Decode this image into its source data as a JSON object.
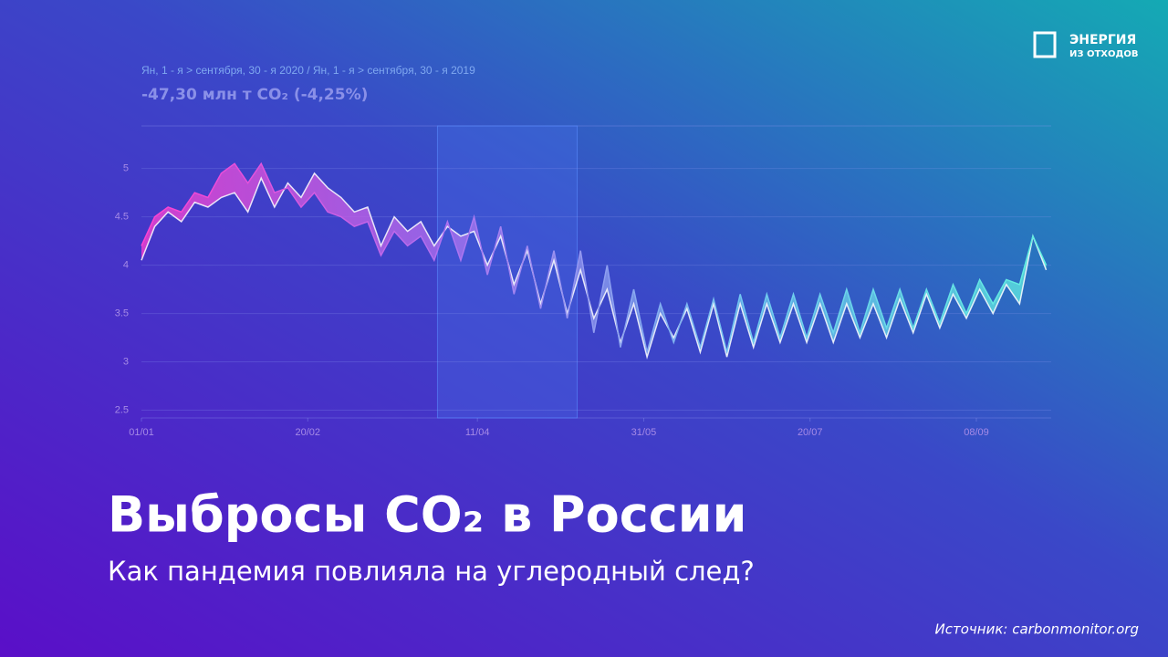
{
  "title": "Выбросы CO₂ в России",
  "subtitle": "Как пандемия повлияла на углеродный след?",
  "source": "Источник: carbonmonitor.org",
  "logo": {
    "line1": "ЭНЕРГИЯ",
    "line2": "ИЗ ОТХОДОВ"
  },
  "chart_data": {
    "type": "line",
    "header": "Ян, 1 - я > сентября, 30 - я 2020 / Ян, 1 - я > сентября, 30 - я 2019",
    "summary": "-47,30 млн т CO₂ (-4,25%)",
    "x": [
      0,
      4,
      8,
      12,
      16,
      20,
      24,
      28,
      32,
      36,
      40,
      44,
      48,
      52,
      56,
      60,
      64,
      68,
      72,
      76,
      80,
      84,
      88,
      92,
      96,
      100,
      104,
      108,
      112,
      116,
      120,
      124,
      128,
      132,
      136,
      140,
      144,
      148,
      152,
      156,
      160,
      164,
      168,
      172,
      176,
      180,
      184,
      188,
      192,
      196,
      200,
      204,
      208,
      212,
      216,
      220,
      224,
      228,
      232,
      236,
      240,
      244,
      248,
      252,
      256,
      260,
      264,
      268,
      272
    ],
    "series": [
      {
        "name": "2020",
        "color": "#ffffff",
        "values": [
          4.05,
          4.4,
          4.55,
          4.45,
          4.65,
          4.6,
          4.7,
          4.75,
          4.55,
          4.9,
          4.6,
          4.85,
          4.7,
          4.95,
          4.8,
          4.7,
          4.55,
          4.6,
          4.2,
          4.5,
          4.35,
          4.45,
          4.2,
          4.4,
          4.3,
          4.35,
          4.0,
          4.3,
          3.8,
          4.15,
          3.6,
          4.05,
          3.5,
          3.95,
          3.45,
          3.75,
          3.2,
          3.6,
          3.05,
          3.5,
          3.25,
          3.55,
          3.1,
          3.6,
          3.05,
          3.6,
          3.15,
          3.6,
          3.2,
          3.6,
          3.2,
          3.6,
          3.2,
          3.6,
          3.25,
          3.6,
          3.25,
          3.65,
          3.3,
          3.7,
          3.35,
          3.7,
          3.45,
          3.75,
          3.5,
          3.8,
          3.6,
          4.3,
          3.95
        ]
      },
      {
        "name": "2019",
        "color": "#e070f0",
        "values": [
          4.2,
          4.5,
          4.6,
          4.55,
          4.75,
          4.7,
          4.95,
          5.05,
          4.85,
          5.05,
          4.75,
          4.8,
          4.6,
          4.75,
          4.55,
          4.5,
          4.4,
          4.45,
          4.1,
          4.35,
          4.2,
          4.3,
          4.05,
          4.45,
          4.05,
          4.5,
          3.9,
          4.4,
          3.7,
          4.2,
          3.55,
          4.15,
          3.45,
          4.15,
          3.3,
          4.0,
          3.15,
          3.75,
          3.1,
          3.6,
          3.2,
          3.6,
          3.15,
          3.65,
          3.1,
          3.7,
          3.2,
          3.7,
          3.25,
          3.7,
          3.25,
          3.7,
          3.3,
          3.75,
          3.3,
          3.75,
          3.35,
          3.75,
          3.35,
          3.75,
          3.4,
          3.8,
          3.5,
          3.85,
          3.6,
          3.85,
          3.8,
          4.3,
          4.0
        ]
      }
    ],
    "fill_gradient": [
      "#ff40d0",
      "#b070f0",
      "#70c8f0",
      "#60f0e0"
    ],
    "highlight_x": [
      89,
      131
    ],
    "xlim": [
      0,
      273.5
    ],
    "xticks": [
      {
        "value": 0,
        "label": "01/01"
      },
      {
        "value": 50,
        "label": "20/02"
      },
      {
        "value": 101,
        "label": "11/04"
      },
      {
        "value": 151,
        "label": "31/05"
      },
      {
        "value": 201,
        "label": "20/07"
      },
      {
        "value": 251,
        "label": "08/09"
      }
    ],
    "ylim": [
      2.42,
      5.44
    ],
    "yticks": [
      2.5,
      3,
      3.5,
      4,
      4.5,
      5
    ],
    "grid": true
  }
}
